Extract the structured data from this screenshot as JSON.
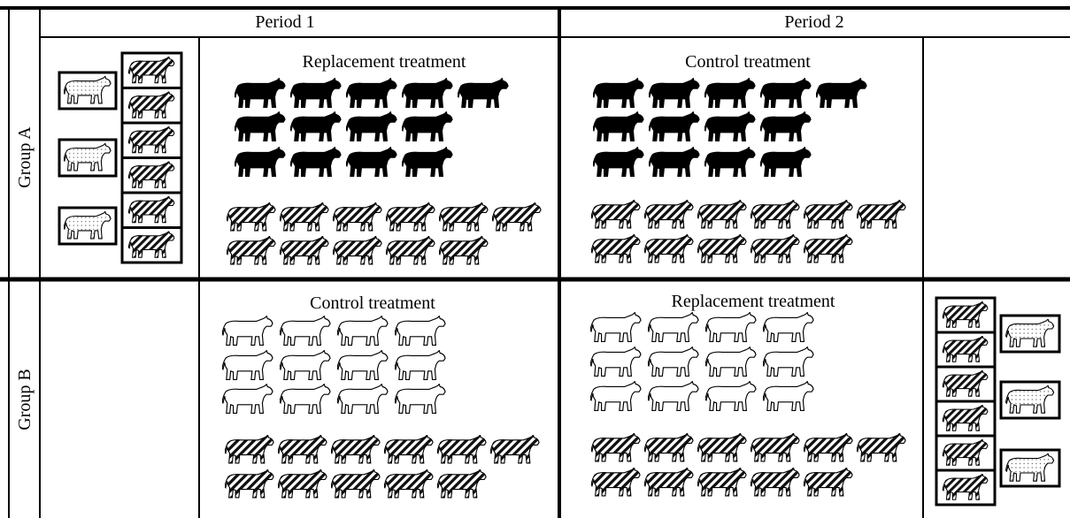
{
  "header": {
    "period1": "Period 1",
    "period2": "Period 2"
  },
  "groups": [
    {
      "label": "Group A",
      "period1_treatment": "Replacement treatment",
      "period2_treatment": "Control treatment"
    },
    {
      "label": "Group B",
      "period1_treatment": "Control treatment",
      "period2_treatment": "Replacement treatment"
    }
  ]
}
